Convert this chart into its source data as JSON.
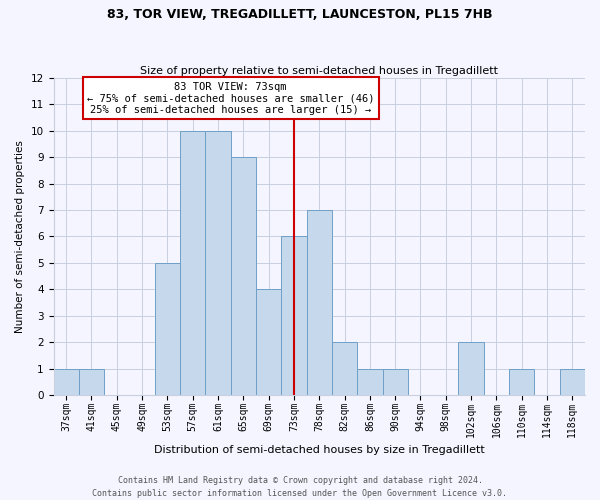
{
  "title": "83, TOR VIEW, TREGADILLETT, LAUNCESTON, PL15 7HB",
  "subtitle": "Size of property relative to semi-detached houses in Tregadillett",
  "xlabel": "Distribution of semi-detached houses by size in Tregadillett",
  "ylabel": "Number of semi-detached properties",
  "bins": [
    "37sqm",
    "41sqm",
    "45sqm",
    "49sqm",
    "53sqm",
    "57sqm",
    "61sqm",
    "65sqm",
    "69sqm",
    "73sqm",
    "78sqm",
    "82sqm",
    "86sqm",
    "90sqm",
    "94sqm",
    "98sqm",
    "102sqm",
    "106sqm",
    "110sqm",
    "114sqm",
    "118sqm"
  ],
  "values": [
    1,
    1,
    0,
    0,
    5,
    10,
    10,
    9,
    4,
    6,
    7,
    2,
    1,
    1,
    0,
    0,
    2,
    0,
    1,
    0,
    1
  ],
  "bar_color": "#c6d9ec",
  "bar_edge_color": "#6fa0c8",
  "property_line_x": 9.5,
  "property_line_color": "#cc0000",
  "annotation_text_line1": "83 TOR VIEW: 73sqm",
  "annotation_text_line2": "← 75% of semi-detached houses are smaller (46)",
  "annotation_text_line3": "25% of semi-detached houses are larger (15) →",
  "annotation_box_color": "#ffffff",
  "annotation_box_edge_color": "#cc0000",
  "ylim": [
    0,
    12
  ],
  "yticks": [
    0,
    1,
    2,
    3,
    4,
    5,
    6,
    7,
    8,
    9,
    10,
    11,
    12
  ],
  "footer_text": "Contains HM Land Registry data © Crown copyright and database right 2024.\nContains public sector information licensed under the Open Government Licence v3.0.",
  "bg_color": "#f5f5ff",
  "grid_color": "#c8d0e0",
  "title_fontsize": 9,
  "subtitle_fontsize": 8,
  "xlabel_fontsize": 8,
  "ylabel_fontsize": 7.5,
  "tick_fontsize": 7,
  "annotation_fontsize": 7.5,
  "footer_fontsize": 6
}
